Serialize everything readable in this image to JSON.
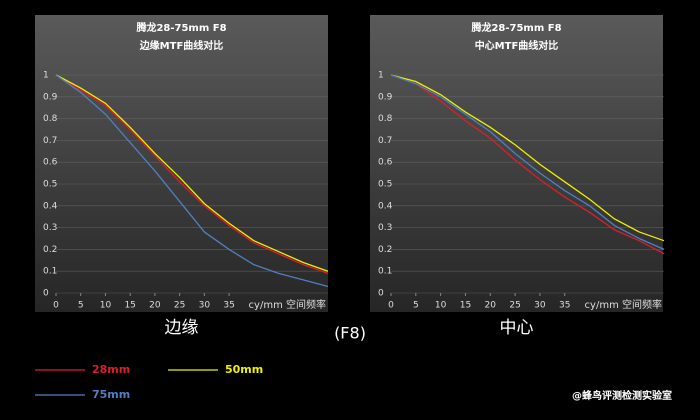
{
  "chart_data": [
    {
      "type": "line",
      "title": "腾龙28-75mm F8",
      "subtitle": "边缘MTF曲线对比",
      "caption": "边缘",
      "x_label": "cy/mm 空间频率",
      "x": [
        0,
        5,
        10,
        15,
        20,
        25,
        30,
        35,
        40,
        45,
        50,
        55
      ],
      "xlim": [
        0,
        55
      ],
      "xticks": [
        0,
        5,
        10,
        15,
        20,
        25,
        30,
        35
      ],
      "ylim": [
        0,
        1
      ],
      "yticks": [
        0,
        0.1,
        0.2,
        0.3,
        0.4,
        0.5,
        0.6,
        0.7,
        0.8,
        0.9,
        1
      ],
      "grid": true,
      "series": [
        {
          "name": "28mm",
          "color": "#d8202a",
          "values": [
            1,
            0.93,
            0.86,
            0.75,
            0.63,
            0.51,
            0.4,
            0.31,
            0.23,
            0.18,
            0.13,
            0.09
          ]
        },
        {
          "name": "50mm",
          "color": "#f0f000",
          "values": [
            1,
            0.94,
            0.87,
            0.76,
            0.64,
            0.53,
            0.41,
            0.32,
            0.24,
            0.19,
            0.14,
            0.1
          ]
        },
        {
          "name": "75mm",
          "color": "#4f7fc0",
          "values": [
            1,
            0.92,
            0.82,
            0.69,
            0.56,
            0.42,
            0.28,
            0.2,
            0.13,
            0.09,
            0.06,
            0.03
          ]
        }
      ]
    },
    {
      "type": "line",
      "title": "腾龙28-75mm F8",
      "subtitle": "中心MTF曲线对比",
      "caption": "中心",
      "x_label": "cy/mm 空间频率",
      "x": [
        0,
        5,
        10,
        15,
        20,
        25,
        30,
        35,
        40,
        45,
        50,
        55
      ],
      "xlim": [
        0,
        55
      ],
      "xticks": [
        0,
        5,
        10,
        15,
        20,
        25,
        30,
        35
      ],
      "ylim": [
        0,
        1
      ],
      "yticks": [
        0,
        0.1,
        0.2,
        0.3,
        0.4,
        0.5,
        0.6,
        0.7,
        0.8,
        0.9,
        1
      ],
      "grid": true,
      "series": [
        {
          "color": "#d8202a",
          "values": [
            1,
            0.96,
            0.88,
            0.79,
            0.71,
            0.61,
            0.52,
            0.44,
            0.37,
            0.29,
            0.24,
            0.18
          ]
        },
        {
          "color": "#f0f000",
          "values": [
            1,
            0.97,
            0.91,
            0.83,
            0.76,
            0.68,
            0.59,
            0.51,
            0.43,
            0.34,
            0.28,
            0.24
          ]
        },
        {
          "color": "#4f7fc0",
          "values": [
            1,
            0.96,
            0.9,
            0.82,
            0.74,
            0.64,
            0.55,
            0.47,
            0.4,
            0.31,
            0.25,
            0.2
          ]
        }
      ]
    }
  ],
  "aperture_label": "(F8)",
  "watermark": "@蜂鸟评测检测实验室"
}
